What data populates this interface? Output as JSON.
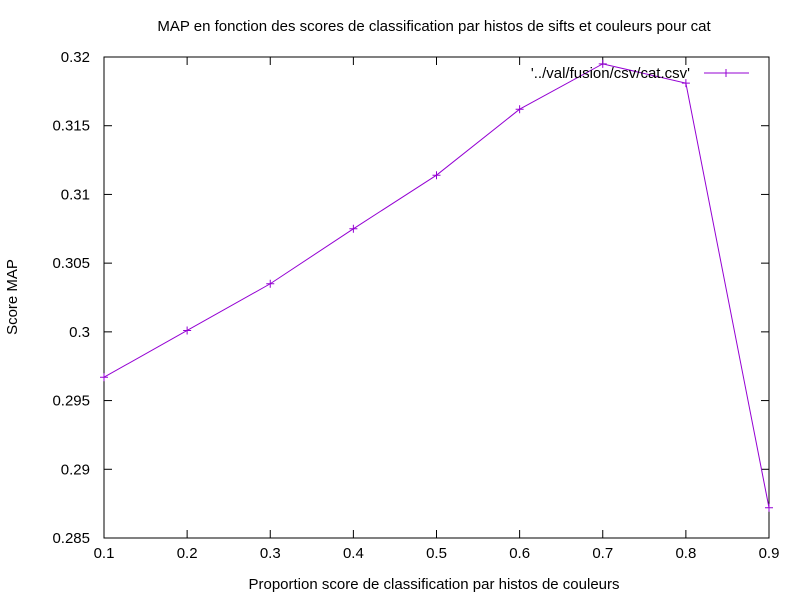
{
  "chart_data": {
    "type": "line",
    "title": "MAP en fonction des scores de classification par histos de sifts et couleurs pour cat",
    "xlabel": "Proportion score de classification par histos de couleurs",
    "ylabel": "Score MAP",
    "xlim": [
      0.1,
      0.9
    ],
    "ylim": [
      0.285,
      0.32
    ],
    "xticks": [
      0.1,
      0.2,
      0.3,
      0.4,
      0.5,
      0.6,
      0.7,
      0.8,
      0.9
    ],
    "yticks": [
      0.285,
      0.29,
      0.295,
      0.3,
      0.305,
      0.31,
      0.315,
      0.32
    ],
    "xtick_labels": [
      "0.1",
      "0.2",
      "0.3",
      "0.4",
      "0.5",
      "0.6",
      "0.7",
      "0.8",
      "0.9"
    ],
    "ytick_labels": [
      "0.285",
      "0.29",
      "0.295",
      "0.3",
      "0.305",
      "0.31",
      "0.315",
      "0.32"
    ],
    "grid": false,
    "legend_position": "top-right",
    "series": [
      {
        "name": "'../val/fusion/csv/cat.csv'",
        "color": "#9400d3",
        "marker": "plus",
        "x": [
          0.1,
          0.2,
          0.3,
          0.4,
          0.5,
          0.6,
          0.7,
          0.8,
          0.9
        ],
        "y": [
          0.2967,
          0.3001,
          0.3035,
          0.3075,
          0.3114,
          0.3162,
          0.3195,
          0.3181,
          0.2872
        ]
      }
    ]
  }
}
